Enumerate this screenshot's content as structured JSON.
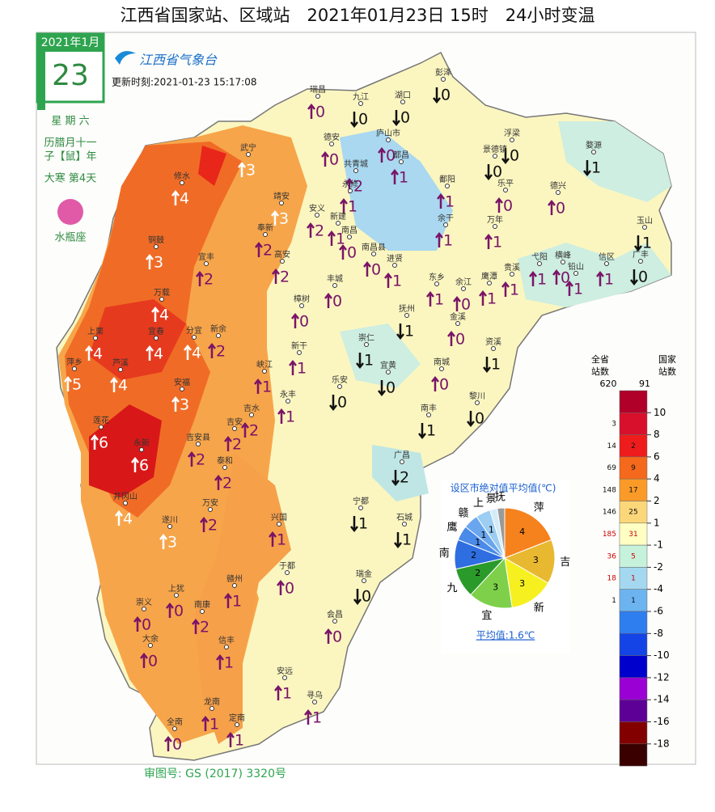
{
  "header": {
    "title": "江西省国家站、区域站　2021年01月23日 15时　24小时变温",
    "update": "更新时刻:2021-01-23 15:17:08",
    "logo": "江西省气象台",
    "review": "审图号: GS (2017) 3320号"
  },
  "calendar": {
    "month": "2021年1月",
    "day": "23",
    "weekday": "星 期 六",
    "lunar": "历腊月十一",
    "zodiac_year": "子【鼠】年",
    "term": "大寒 第4天",
    "sign": "水瓶座"
  },
  "stations": [
    {
      "name": "彭泽",
      "pos": [
        548,
        90
      ],
      "dir": "down",
      "value": 0
    },
    {
      "name": "瑞昌",
      "pos": [
        393,
        111
      ],
      "dir": "up",
      "value": 0
    },
    {
      "name": "九江",
      "pos": [
        446,
        120
      ],
      "dir": "down",
      "value": 0
    },
    {
      "name": "湖口",
      "pos": [
        498,
        118
      ],
      "dir": "down",
      "value": 0
    },
    {
      "name": "庐山市",
      "pos": [
        480,
        165
      ],
      "dir": "up",
      "value": 0
    },
    {
      "name": "德安",
      "pos": [
        410,
        170
      ],
      "dir": "up",
      "value": 0
    },
    {
      "name": "武宁",
      "pos": [
        307,
        183
      ],
      "dir": "up",
      "value": 3
    },
    {
      "name": "都昌",
      "pos": [
        496,
        192
      ],
      "dir": "up",
      "value": 1
    },
    {
      "name": "共青城",
      "pos": [
        440,
        203
      ],
      "dir": "up",
      "value": 2
    },
    {
      "name": "浮梁",
      "pos": [
        633,
        165
      ],
      "dir": "down",
      "value": 0
    },
    {
      "name": "景德镇",
      "pos": [
        612,
        185
      ],
      "dir": "down",
      "value": 0
    },
    {
      "name": "婺源",
      "pos": [
        734,
        180
      ],
      "dir": "down",
      "value": 1
    },
    {
      "name": "修水",
      "pos": [
        225,
        218
      ],
      "dir": "up",
      "value": 4
    },
    {
      "name": "永修",
      "pos": [
        433,
        228
      ],
      "dir": "up",
      "value": 1
    },
    {
      "name": "鄱阳",
      "pos": [
        553,
        222
      ],
      "dir": "up",
      "value": 1
    },
    {
      "name": "乐平",
      "pos": [
        625,
        227
      ],
      "dir": "up",
      "value": 0
    },
    {
      "name": "德兴",
      "pos": [
        690,
        230
      ],
      "dir": "up",
      "value": 0
    },
    {
      "name": "靖安",
      "pos": [
        348,
        243
      ],
      "dir": "up",
      "value": 3
    },
    {
      "name": "安义",
      "pos": [
        392,
        258
      ],
      "dir": "up",
      "value": 2
    },
    {
      "name": "奉新",
      "pos": [
        328,
        282
      ],
      "dir": "up",
      "value": 2
    },
    {
      "name": "新建",
      "pos": [
        418,
        268
      ],
      "dir": "up",
      "value": 1
    },
    {
      "name": "余干",
      "pos": [
        551,
        270
      ],
      "dir": "up",
      "value": 1
    },
    {
      "name": "万年",
      "pos": [
        612,
        272
      ],
      "dir": "up",
      "value": 1
    },
    {
      "name": "玉山",
      "pos": [
        797,
        273
      ],
      "dir": "down",
      "value": 1
    },
    {
      "name": "铜鼓",
      "pos": [
        193,
        297
      ],
      "dir": "up",
      "value": 3
    },
    {
      "name": "南昌",
      "pos": [
        432,
        285
      ],
      "dir": "up",
      "value": 0
    },
    {
      "name": "南昌县",
      "pos": [
        462,
        306
      ],
      "dir": "up",
      "value": 0
    },
    {
      "name": "高安",
      "pos": [
        349,
        315
      ],
      "dir": "up",
      "value": 2
    },
    {
      "name": "宜丰",
      "pos": [
        255,
        318
      ],
      "dir": "up",
      "value": 2
    },
    {
      "name": "进贤",
      "pos": [
        488,
        320
      ],
      "dir": "up",
      "value": 1
    },
    {
      "name": "东乡",
      "pos": [
        540,
        343
      ],
      "dir": "up",
      "value": 1
    },
    {
      "name": "余江",
      "pos": [
        573,
        349
      ],
      "dir": "up",
      "value": 0
    },
    {
      "name": "鹰潭",
      "pos": [
        605,
        342
      ],
      "dir": "up",
      "value": 1
    },
    {
      "name": "贵溪",
      "pos": [
        633,
        331
      ],
      "dir": "up",
      "value": 1
    },
    {
      "name": "弋阳",
      "pos": [
        667,
        318
      ],
      "dir": "up",
      "value": 1
    },
    {
      "name": "横峰",
      "pos": [
        696,
        316
      ],
      "dir": "up",
      "value": 0
    },
    {
      "name": "铅山",
      "pos": [
        712,
        330
      ],
      "dir": "up",
      "value": 1
    },
    {
      "name": "信区",
      "pos": [
        750,
        318
      ],
      "dir": "up",
      "value": 1
    },
    {
      "name": "广丰",
      "pos": [
        792,
        315
      ],
      "dir": "down",
      "value": 0
    },
    {
      "name": "丰城",
      "pos": [
        414,
        345
      ],
      "dir": "up",
      "value": 0
    },
    {
      "name": "万载",
      "pos": [
        200,
        362
      ],
      "dir": "up",
      "value": 4
    },
    {
      "name": "樟树",
      "pos": [
        373,
        370
      ],
      "dir": "up",
      "value": 0
    },
    {
      "name": "抚州",
      "pos": [
        503,
        382
      ],
      "dir": "down",
      "value": 1
    },
    {
      "name": "金溪",
      "pos": [
        566,
        392
      ],
      "dir": "up",
      "value": 0
    },
    {
      "name": "资溪",
      "pos": [
        610,
        423
      ],
      "dir": "down",
      "value": 1
    },
    {
      "name": "上栗",
      "pos": [
        118,
        410
      ],
      "dir": "up",
      "value": 4
    },
    {
      "name": "宜春",
      "pos": [
        193,
        410
      ],
      "dir": "up",
      "value": 4
    },
    {
      "name": "分宜",
      "pos": [
        240,
        409
      ],
      "dir": "up",
      "value": 4
    },
    {
      "name": "新余",
      "pos": [
        270,
        407
      ],
      "dir": "up",
      "value": 2
    },
    {
      "name": "新干",
      "pos": [
        370,
        428
      ],
      "dir": "up",
      "value": 1
    },
    {
      "name": "崇仁",
      "pos": [
        453,
        418
      ],
      "dir": "down",
      "value": 1
    },
    {
      "name": "萍乡",
      "pos": [
        92,
        448
      ],
      "dir": "up",
      "value": 5
    },
    {
      "name": "芦溪",
      "pos": [
        149,
        449
      ],
      "dir": "up",
      "value": 4
    },
    {
      "name": "峡江",
      "pos": [
        327,
        451
      ],
      "dir": "up",
      "value": 1
    },
    {
      "name": "宜黄",
      "pos": [
        480,
        452
      ],
      "dir": "down",
      "value": 0
    },
    {
      "name": "南城",
      "pos": [
        546,
        448
      ],
      "dir": "up",
      "value": 0
    },
    {
      "name": "乐安",
      "pos": [
        420,
        470
      ],
      "dir": "down",
      "value": 0
    },
    {
      "name": "安福",
      "pos": [
        225,
        473
      ],
      "dir": "up",
      "value": 3
    },
    {
      "name": "永丰",
      "pos": [
        356,
        488
      ],
      "dir": "up",
      "value": 1
    },
    {
      "name": "黎川",
      "pos": [
        590,
        490
      ],
      "dir": "down",
      "value": 0
    },
    {
      "name": "吉水",
      "pos": [
        311,
        505
      ],
      "dir": "up",
      "value": 2
    },
    {
      "name": "南丰",
      "pos": [
        530,
        505
      ],
      "dir": "down",
      "value": 1
    },
    {
      "name": "莲花",
      "pos": [
        125,
        520
      ],
      "dir": "up",
      "value": 6
    },
    {
      "name": "吉安",
      "pos": [
        290,
        522
      ],
      "dir": "up",
      "value": 2
    },
    {
      "name": "永新",
      "pos": [
        175,
        548
      ],
      "dir": "up",
      "value": 6
    },
    {
      "name": "吉安县",
      "pos": [
        245,
        541
      ],
      "dir": "up",
      "value": 2
    },
    {
      "name": "泰和",
      "pos": [
        278,
        570
      ],
      "dir": "up",
      "value": 2
    },
    {
      "name": "广昌",
      "pos": [
        497,
        563
      ],
      "dir": "down",
      "value": 2
    },
    {
      "name": "井冈山",
      "pos": [
        155,
        614
      ],
      "dir": "up",
      "value": 4
    },
    {
      "name": "万安",
      "pos": [
        260,
        622
      ],
      "dir": "up",
      "value": 2
    },
    {
      "name": "宁都",
      "pos": [
        446,
        620
      ],
      "dir": "down",
      "value": 1
    },
    {
      "name": "兴国",
      "pos": [
        345,
        640
      ],
      "dir": "up",
      "value": 1
    },
    {
      "name": "石城",
      "pos": [
        500,
        640
      ],
      "dir": "down",
      "value": 1
    },
    {
      "name": "遂川",
      "pos": [
        210,
        643
      ],
      "dir": "up",
      "value": 3
    },
    {
      "name": "瑞金",
      "pos": [
        450,
        710
      ],
      "dir": "down",
      "value": 0
    },
    {
      "name": "于都",
      "pos": [
        355,
        700
      ],
      "dir": "up",
      "value": 0
    },
    {
      "name": "上犹",
      "pos": [
        218,
        728
      ],
      "dir": "up",
      "value": 0
    },
    {
      "name": "赣州",
      "pos": [
        290,
        716
      ],
      "dir": "up",
      "value": 1
    },
    {
      "name": "南康",
      "pos": [
        250,
        748
      ],
      "dir": "up",
      "value": 2
    },
    {
      "name": "崇义",
      "pos": [
        178,
        745
      ],
      "dir": "up",
      "value": 0
    },
    {
      "name": "会昌",
      "pos": [
        414,
        760
      ],
      "dir": "up",
      "value": 0
    },
    {
      "name": "大余",
      "pos": [
        186,
        790
      ],
      "dir": "up",
      "value": 0
    },
    {
      "name": "信丰",
      "pos": [
        280,
        792
      ],
      "dir": "up",
      "value": 1
    },
    {
      "name": "安远",
      "pos": [
        352,
        830
      ],
      "dir": "up",
      "value": 1
    },
    {
      "name": "寻乌",
      "pos": [
        389,
        860
      ],
      "dir": "up",
      "value": 1
    },
    {
      "name": "龙南",
      "pos": [
        262,
        868
      ],
      "dir": "up",
      "value": 1
    },
    {
      "name": "全南",
      "pos": [
        216,
        893
      ],
      "dir": "up",
      "value": 0
    },
    {
      "name": "定南",
      "pos": [
        293,
        888
      ],
      "dir": "up",
      "value": 1
    }
  ],
  "legend": {
    "head_all": "全省站数",
    "head_nat": "国家站数",
    "total_all": 620,
    "total_nat": 91,
    "ticks": [
      10,
      8,
      6,
      4,
      2,
      1,
      -1,
      -2,
      -4,
      -6,
      -8,
      -10,
      -12,
      -14,
      -16,
      -18
    ],
    "colors": [
      "#b0002a",
      "#d8102c",
      "#ee1c1c",
      "#f4691c",
      "#fa9a28",
      "#fcd77a",
      "#ffffc4",
      "#c6f2dc",
      "#a4d8f0",
      "#6cb4f0",
      "#2f7ef0",
      "#1444e6",
      "#0000cc",
      "#9a00d4",
      "#5c0096",
      "#820000",
      "#3a0000"
    ],
    "counts_all": [
      null,
      3,
      14,
      69,
      148,
      146,
      185,
      36,
      18,
      1,
      null,
      null,
      null,
      null,
      null,
      null,
      null
    ],
    "counts_nat": [
      null,
      null,
      2,
      9,
      17,
      25,
      31,
      5,
      1,
      1,
      null,
      null,
      null,
      null,
      null,
      null,
      null
    ]
  },
  "pie": {
    "title": "设区市绝对值平均值(℃)",
    "average": "平均值:1.6℃",
    "labels": [
      "萍",
      "吉",
      "新",
      "宜",
      "九",
      "南",
      "鹰",
      "赣",
      "上",
      "景",
      "抚"
    ],
    "values": [
      4,
      3,
      3,
      3,
      2,
      2,
      1,
      1,
      1,
      0.5,
      0.5
    ],
    "value_labels": [
      "4",
      "3",
      "3",
      "3",
      "2",
      "2",
      "1",
      "1",
      "1",
      null,
      null
    ],
    "colors": [
      "#f6821e",
      "#e8b830",
      "#f6f020",
      "#7ed04a",
      "#2a9a2a",
      "#2f6ee0",
      "#4a8ae8",
      "#6aa6ee",
      "#9ccdf2",
      "#d4ecf8",
      "#9a9a9a"
    ]
  }
}
